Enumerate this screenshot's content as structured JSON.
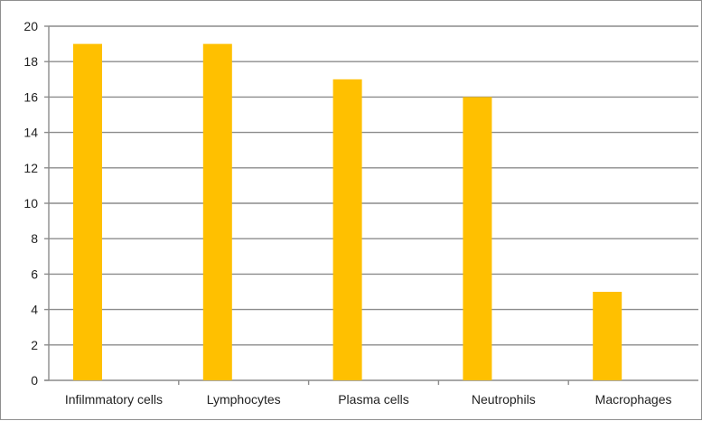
{
  "chart_data": {
    "type": "bar",
    "title": "",
    "xlabel": "",
    "ylabel": "",
    "categories": [
      "Infilmmatory cells",
      "Lymphocytes",
      "Plasma cells",
      "Neutrophils",
      "Macrophages"
    ],
    "values": [
      19,
      19,
      17,
      16,
      5
    ],
    "ylim": [
      0,
      20
    ],
    "yticks": [
      "0",
      "2",
      "4",
      "6",
      "8",
      "10",
      "12",
      "14",
      "16",
      "18",
      "20"
    ],
    "grid": true,
    "legend": "none",
    "bar_color": "#FFC000",
    "gridline_color": "#8c8c8c",
    "axis_color": "#8c8c8c"
  }
}
